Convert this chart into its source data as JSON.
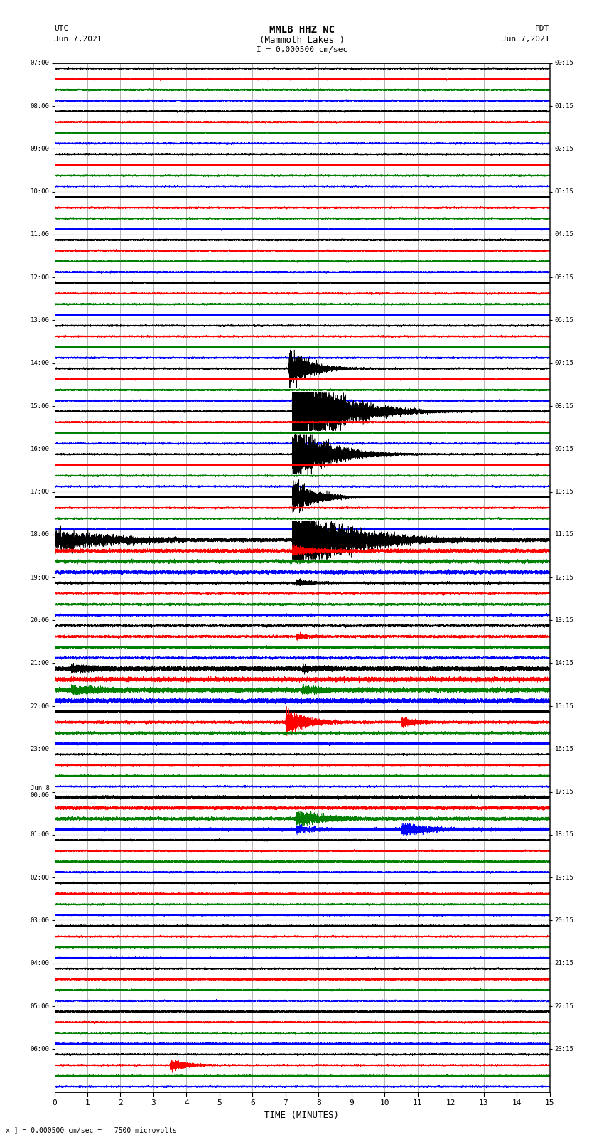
{
  "title_line1": "MMLB HHZ NC",
  "title_line2": "(Mammoth Lakes )",
  "title_line3": "I = 0.000500 cm/sec",
  "left_header_line1": "UTC",
  "left_header_line2": "Jun 7,2021",
  "right_header_line1": "PDT",
  "right_header_line2": "Jun 7,2021",
  "bottom_label": "TIME (MINUTES)",
  "bottom_note": "x ] = 0.000500 cm/sec =   7500 microvolts",
  "xlim": [
    0,
    15
  ],
  "x_ticks": [
    0,
    1,
    2,
    3,
    4,
    5,
    6,
    7,
    8,
    9,
    10,
    11,
    12,
    13,
    14,
    15
  ],
  "utc_times": [
    "07:00",
    "08:00",
    "09:00",
    "10:00",
    "11:00",
    "12:00",
    "13:00",
    "14:00",
    "15:00",
    "16:00",
    "17:00",
    "18:00",
    "19:00",
    "20:00",
    "21:00",
    "22:00",
    "23:00",
    "Jun 8\n00:00",
    "01:00",
    "02:00",
    "03:00",
    "04:00",
    "05:00",
    "06:00"
  ],
  "pdt_times": [
    "00:15",
    "01:15",
    "02:15",
    "03:15",
    "04:15",
    "05:15",
    "06:15",
    "07:15",
    "08:15",
    "09:15",
    "10:15",
    "11:15",
    "12:15",
    "13:15",
    "14:15",
    "15:15",
    "16:15",
    "17:15",
    "18:15",
    "19:15",
    "20:15",
    "21:15",
    "22:15",
    "23:15"
  ],
  "n_rows": 24,
  "n_minutes": 15,
  "sample_rate": 50,
  "bg_color": "white",
  "trace_colors": [
    "black",
    "red",
    "green",
    "blue"
  ],
  "base_noise_amp": 0.018,
  "lw": 0.4
}
